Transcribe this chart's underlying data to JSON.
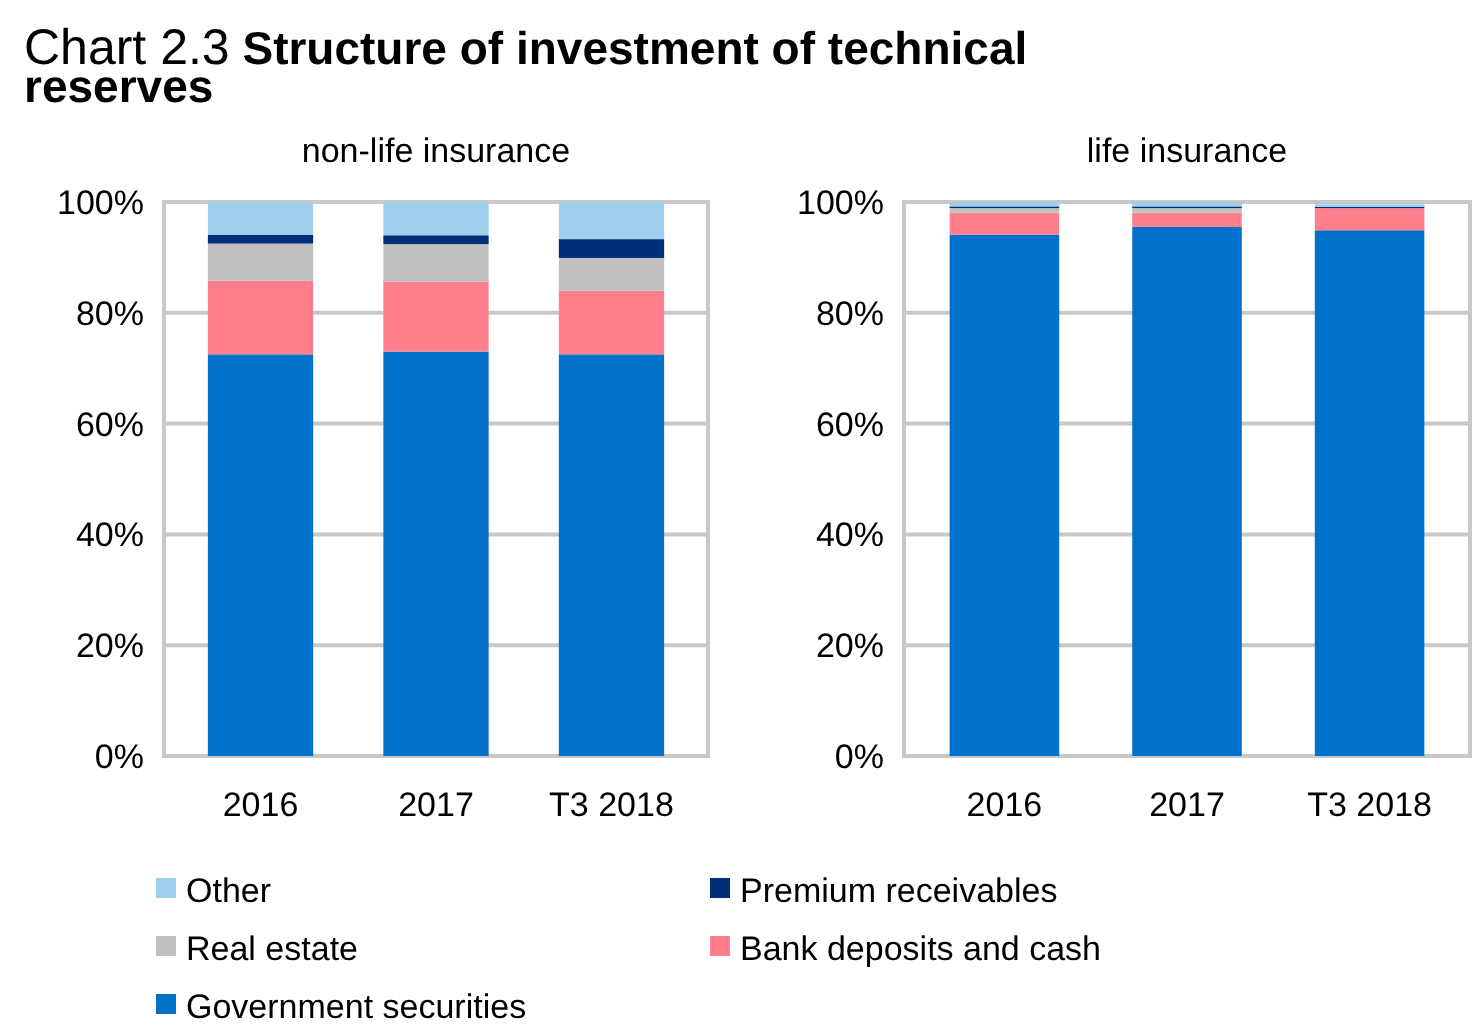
{
  "chart_data": [
    {
      "type": "bar",
      "title": "Chart 2.3 Structure of investment of technical reserves",
      "subtitle": "non-life insurance",
      "categories": [
        "2016",
        "2017",
        "T3 2018"
      ],
      "stacked": true,
      "grid": "y",
      "legend": "bottom",
      "ylim": [
        0,
        100
      ],
      "yticks": [
        {
          "value": 0,
          "label": "0%"
        },
        {
          "value": 20,
          "label": "20%"
        },
        {
          "value": 40,
          "label": "40%"
        },
        {
          "value": 60,
          "label": "60%"
        },
        {
          "value": 80,
          "label": "80%"
        },
        {
          "value": 100,
          "label": "100%"
        }
      ],
      "series": [
        {
          "name": "Government securities",
          "color": "#0070c8",
          "values": [
            72.5,
            73,
            72.5
          ]
        },
        {
          "name": "Bank deposits and cash",
          "color": "#ff7f8c",
          "values": [
            13.3,
            12.6,
            11.5
          ]
        },
        {
          "name": "Real estate",
          "color": "#c0c0c0",
          "values": [
            6.7,
            6.8,
            5.9
          ]
        },
        {
          "name": "Premium receivables",
          "color": "#002f7a",
          "values": [
            1.6,
            1.6,
            3.4
          ]
        },
        {
          "name": "Other",
          "color": "#9fcfeb",
          "values": [
            5.9,
            6,
            6.7
          ]
        }
      ]
    },
    {
      "type": "bar",
      "subtitle": "life insurance",
      "categories": [
        "2016",
        "2017",
        "T3 2018"
      ],
      "stacked": true,
      "grid": "y",
      "ylim": [
        0,
        100
      ],
      "yticks": [
        {
          "value": 0,
          "label": "0%"
        },
        {
          "value": 20,
          "label": "20%"
        },
        {
          "value": 40,
          "label": "40%"
        },
        {
          "value": 60,
          "label": "60%"
        },
        {
          "value": 80,
          "label": "80%"
        },
        {
          "value": 100,
          "label": "100%"
        }
      ],
      "series": [
        {
          "color": "#0070c8",
          "values": [
            94.1,
            95.5,
            94.9
          ]
        },
        {
          "color": "#ff7f8c",
          "values": [
            4,
            2.6,
            4
          ]
        },
        {
          "color": "#c0c0c0",
          "values": [
            0.8,
            0.8,
            null
          ]
        },
        {
          "color": "#002f7a",
          "values": [
            0.3,
            0.3,
            0.2
          ]
        },
        {
          "color": "#9fcfeb",
          "values": [
            0.8,
            0.8,
            0.5
          ]
        }
      ]
    }
  ]
}
